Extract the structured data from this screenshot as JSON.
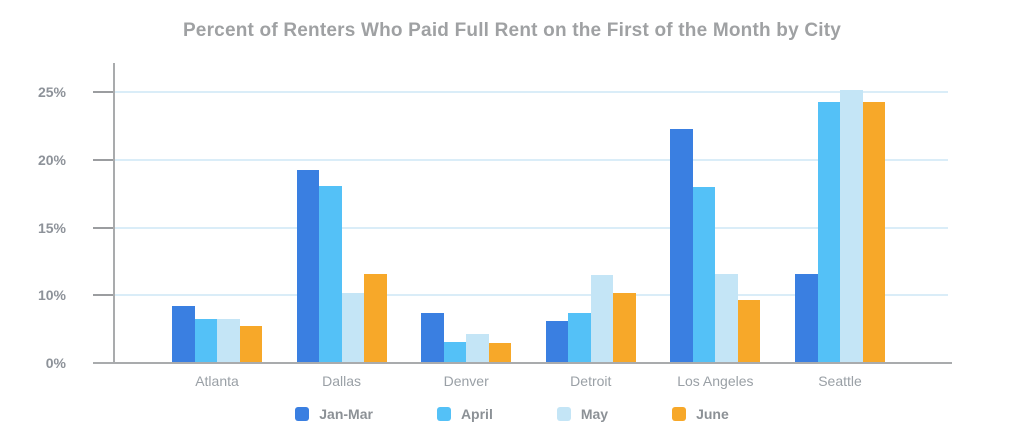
{
  "chart_data": {
    "type": "bar",
    "title": "Percent of Renters Who Paid Full Rent on the First of the Month by City",
    "categories": [
      "Atlanta",
      "Dallas",
      "Denver",
      "Detroit",
      "Los Angeles",
      "Seattle"
    ],
    "series": [
      {
        "name": "Jan-Mar",
        "color": "#3a7fe1",
        "values": [
          8.3,
          19.2,
          7.2,
          6.1,
          22.2,
          11.5
        ]
      },
      {
        "name": "April",
        "color": "#54c1f7",
        "values": [
          6.3,
          18.0,
          3.0,
          7.2,
          17.9,
          24.2
        ]
      },
      {
        "name": "May",
        "color": "#c4e5f6",
        "values": [
          6.4,
          10.1,
          4.1,
          11.4,
          11.5,
          25.1
        ]
      },
      {
        "name": "June",
        "color": "#f7a829",
        "values": [
          5.3,
          11.5,
          2.8,
          10.1,
          9.2,
          24.2
        ]
      }
    ],
    "xlabel": "",
    "ylabel": "",
    "y_axis": {
      "tick_labels": [
        "0%",
        "10%",
        "15%",
        "20%",
        "25%"
      ],
      "tick_values": [
        0,
        10,
        15,
        20,
        25
      ],
      "ticks_equally_spaced": true,
      "range_note": "axis shows 0,10,15,20,25 at equal visual intervals"
    },
    "grid": true,
    "legend_position": "bottom",
    "colors": {
      "gridline": "#daedf8",
      "axis_line": "#a9abad",
      "tick_mark": "#9b9da0",
      "title_text": "#9fa1a3",
      "axis_label_text": "#8d9299",
      "category_label_text": "#9aa0a6",
      "legend_label_text": "#8c9196",
      "background": "#ffffff"
    }
  }
}
